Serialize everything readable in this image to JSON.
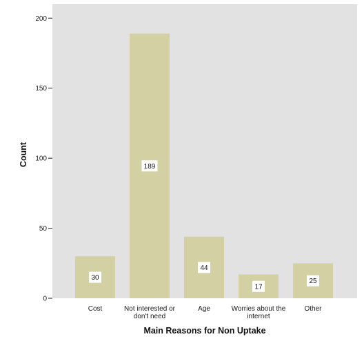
{
  "chart_data": {
    "type": "bar",
    "title": "",
    "xlabel": "Main Reasons for Non Uptake",
    "ylabel": "Count",
    "categories": [
      [
        "Cost"
      ],
      [
        "Not interested or",
        "don't need"
      ],
      [
        "Age"
      ],
      [
        "Worries about the",
        "internet"
      ],
      [
        "Other"
      ]
    ],
    "values": [
      30,
      189,
      44,
      17,
      25
    ],
    "data_labels": [
      "30",
      "189",
      "44",
      "17",
      "25"
    ],
    "ylim": [
      0,
      210
    ],
    "yticks": [
      0,
      50,
      100,
      150,
      200
    ],
    "ytick_labels": [
      "0",
      "50",
      "100",
      "150",
      "200"
    ],
    "grid": false,
    "legend": "none",
    "colors": {
      "panel_background": "#e1e2e1",
      "bar_fill": "#d3d0a4",
      "label_box": "#ffffff",
      "text": "#111111"
    }
  }
}
